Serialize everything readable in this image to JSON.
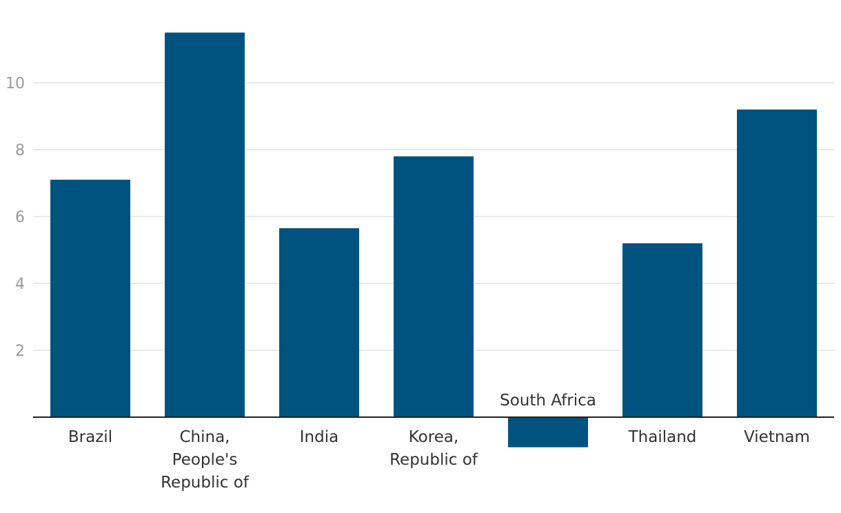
{
  "chart_data": {
    "type": "bar",
    "title": "",
    "xlabel": "",
    "ylabel": "",
    "categories": [
      [
        "Brazil"
      ],
      [
        "China,",
        "People's",
        "Republic of"
      ],
      [
        "India"
      ],
      [
        "Korea,",
        "Republic of"
      ],
      [
        "South Africa"
      ],
      [
        "Thailand"
      ],
      [
        "Vietnam"
      ]
    ],
    "values": [
      7.1,
      11.5,
      5.65,
      7.8,
      -0.9,
      5.2,
      9.2
    ],
    "ylim": [
      -0.9,
      11.5
    ],
    "yticks": [
      2,
      4,
      6,
      8,
      10
    ],
    "grid": true,
    "colors": {
      "bar": "#00537f",
      "grid": "#e2e2e2",
      "axis": "#222222",
      "tick_text": "#9a9a9a",
      "label_text": "#333333"
    }
  }
}
